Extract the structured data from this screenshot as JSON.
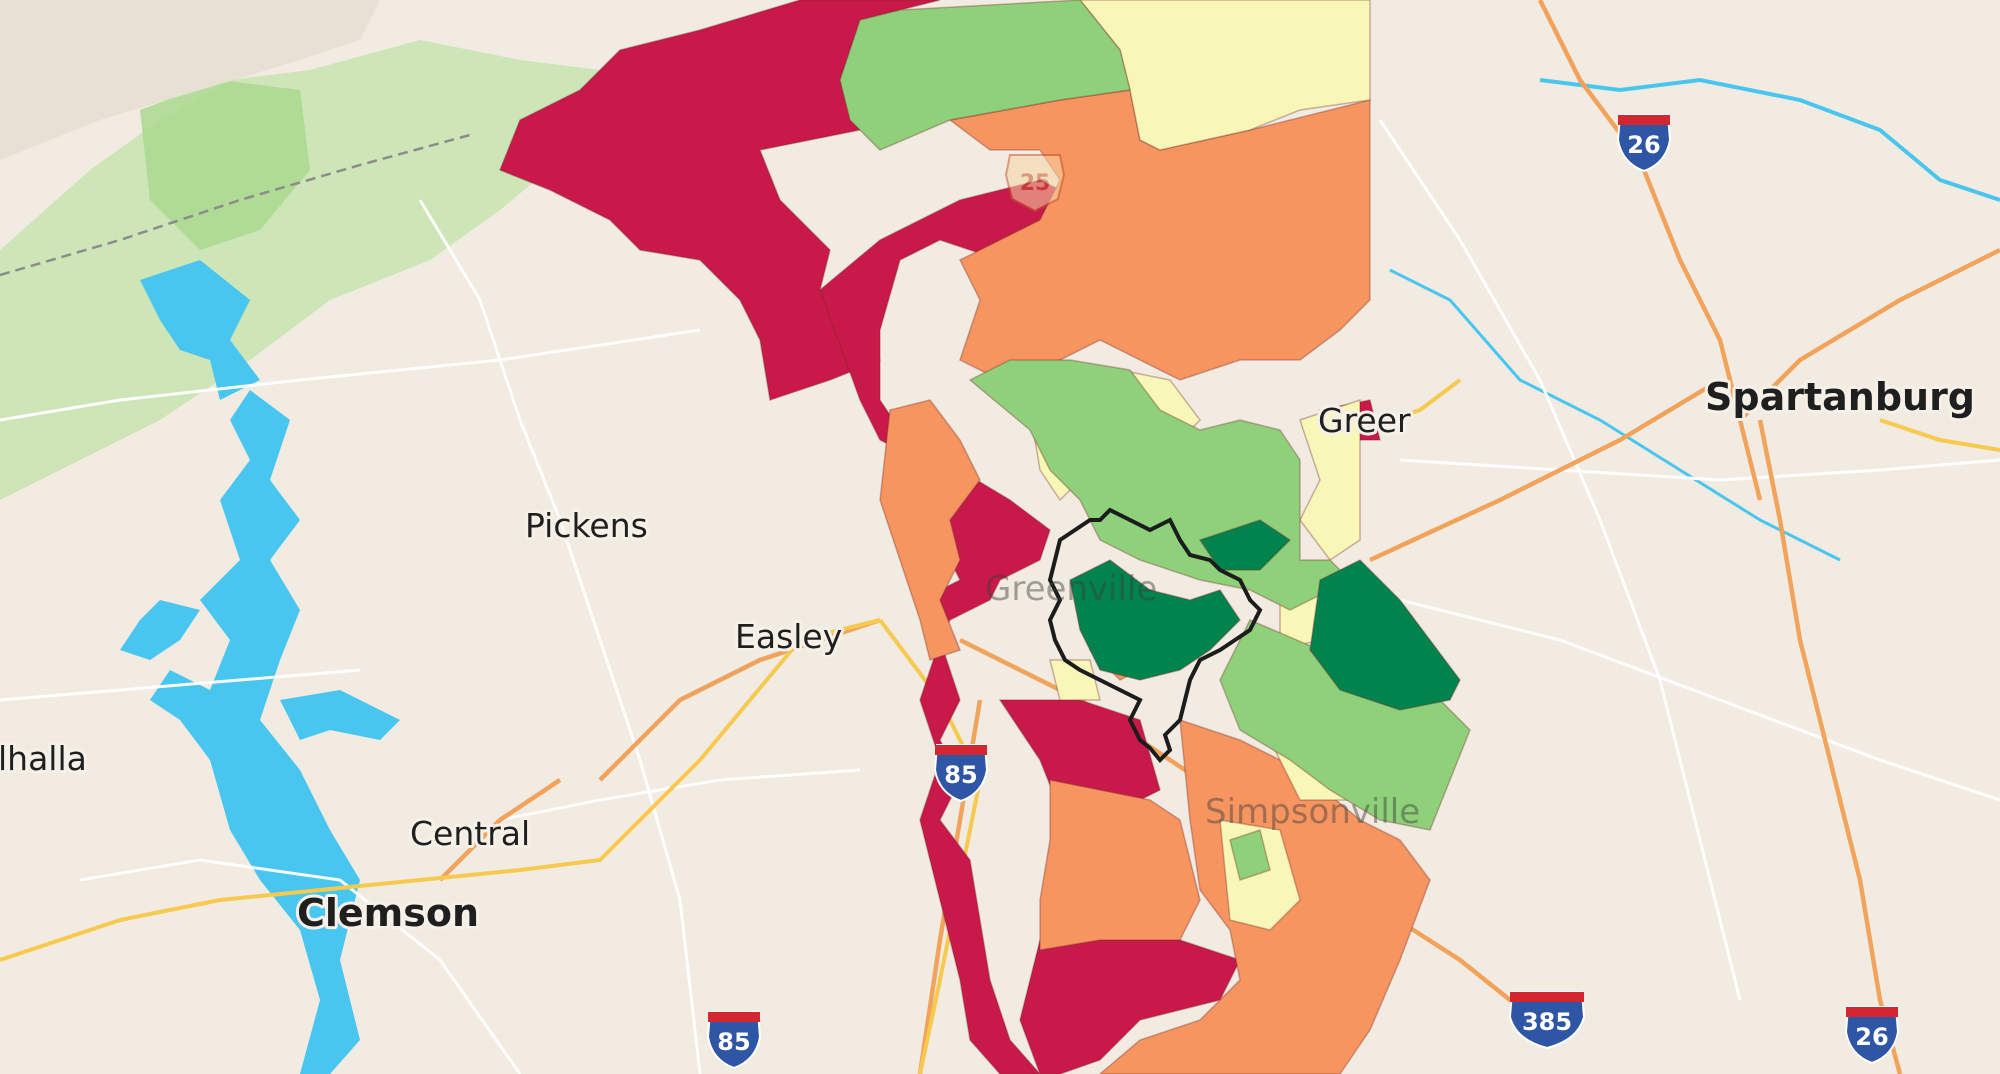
{
  "colors": {
    "background": "#f1ebe1",
    "water": "#49c6ef",
    "parks": "#b6dd9c",
    "roads_major": "#f2a35b",
    "roads_minor": "#ffffff",
    "choropleth": [
      "#c8194a",
      "#f6955f",
      "#f8f7b7",
      "#8fd17a",
      "#00834c"
    ]
  },
  "labels": {
    "pickens": "Pickens",
    "easley": "Easley",
    "central": "Central",
    "clemson": "Clemson",
    "walhalla": "lhalla",
    "spartanburg": "Spartanburg",
    "greer": "Greer",
    "greenville": "Greenville",
    "simpsonville": "Simpsonville"
  },
  "shields": {
    "i26_north": "26",
    "i26_south": "26",
    "i85_center": "85",
    "i85_south": "85",
    "i385": "385",
    "us25": "25"
  }
}
